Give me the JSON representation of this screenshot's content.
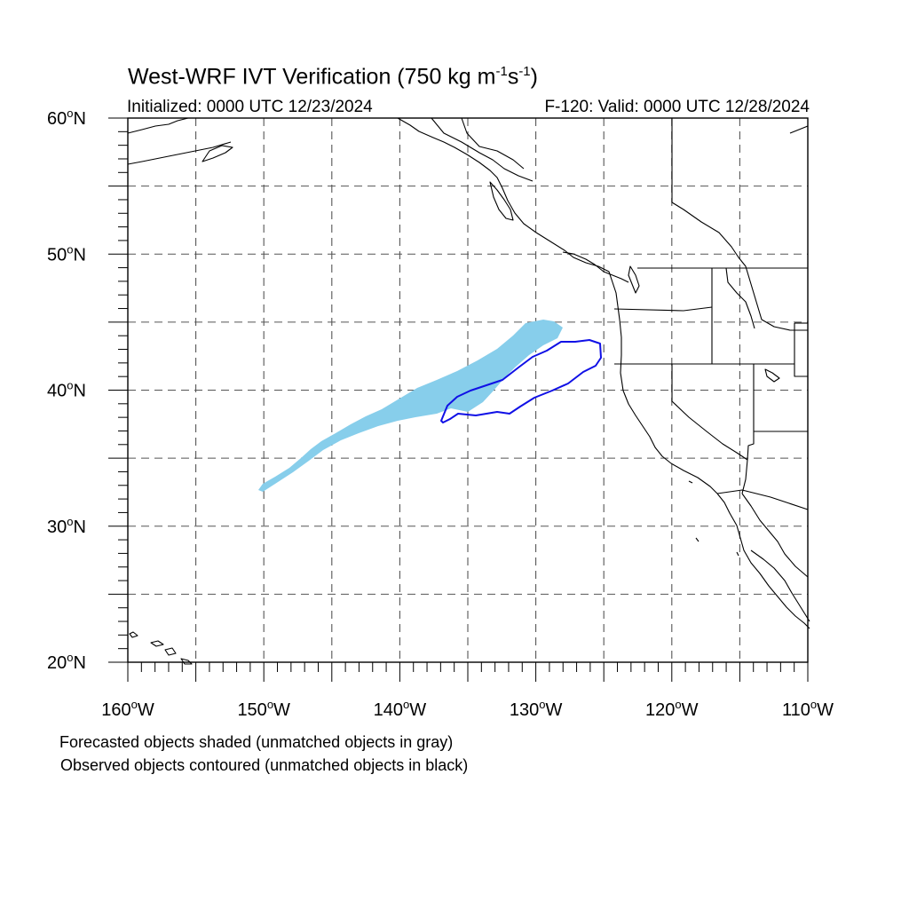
{
  "title": {
    "text": "West-WRF IVT Verification (750 kg m",
    "sup1": "-1",
    "mid": "s",
    "sup2": "-1",
    "end": ")"
  },
  "initialized": "Initialized: 0000 UTC 12/23/2024",
  "valid": "F-120: Valid: 0000 UTC 12/28/2024",
  "map": {
    "lon_range": [
      -160,
      -110
    ],
    "lat_range": [
      20,
      60
    ],
    "grid": "dashed, every 5 degrees",
    "lat_labels": [
      {
        "lat": 60,
        "deg": "60",
        "hem": "N"
      },
      {
        "lat": 50,
        "deg": "50",
        "hem": "N"
      },
      {
        "lat": 40,
        "deg": "40",
        "hem": "N"
      },
      {
        "lat": 30,
        "deg": "30",
        "hem": "N"
      },
      {
        "lat": 20,
        "deg": "20",
        "hem": "N"
      }
    ],
    "lon_labels": [
      {
        "lon": -160,
        "deg": "160",
        "hem": "W"
      },
      {
        "lon": -150,
        "deg": "150",
        "hem": "W"
      },
      {
        "lon": -140,
        "deg": "140",
        "hem": "W"
      },
      {
        "lon": -130,
        "deg": "130",
        "hem": "W"
      },
      {
        "lon": -120,
        "deg": "120",
        "hem": "W"
      },
      {
        "lon": -110,
        "deg": "110",
        "hem": "W"
      }
    ],
    "colors": {
      "forecast_fill": "#87ceeb",
      "observed_contour": "#0000ff",
      "coastline": "#000000",
      "grid": "#555555"
    }
  },
  "captions": {
    "forecast": "Forecasted objects shaded (unmatched objects in gray)",
    "observed": "Observed objects contoured (unmatched objects in black)"
  }
}
